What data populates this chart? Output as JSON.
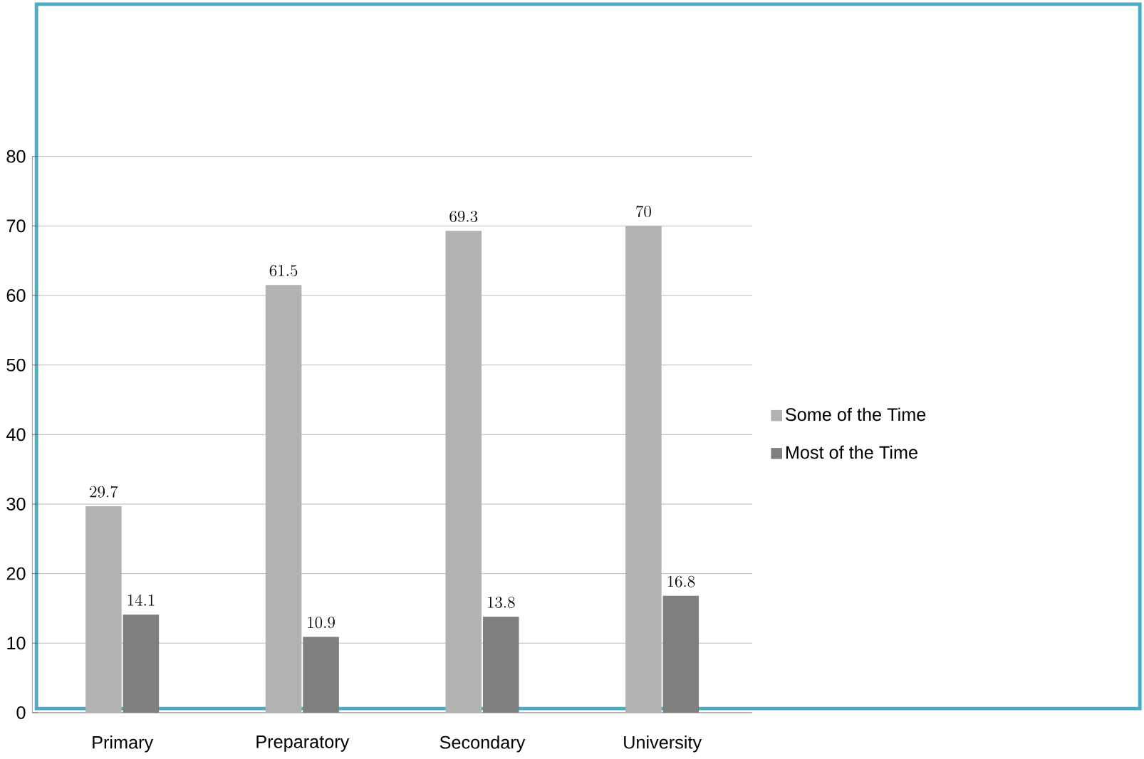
{
  "chart_data": {
    "type": "bar",
    "categories": [
      "Primary",
      "Preparatory",
      "Secondary",
      "University"
    ],
    "series": [
      {
        "name": "Some of the Time",
        "color": "#b2b2b2",
        "values": [
          29.7,
          61.5,
          69.3,
          70
        ]
      },
      {
        "name": "Most of the Time",
        "color": "#7f7f7f",
        "values": [
          14.1,
          10.9,
          13.8,
          16.8
        ]
      }
    ],
    "ylim": [
      0,
      80
    ],
    "yticks": [
      0,
      10,
      20,
      30,
      40,
      50,
      60,
      70,
      80
    ],
    "grid": "y",
    "legend": "right",
    "data_labels": true
  }
}
